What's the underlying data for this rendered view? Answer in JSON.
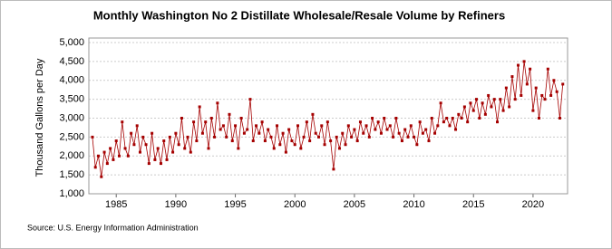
{
  "chart_data": {
    "type": "line",
    "title": "Monthly Washington No 2 Distillate Wholesale/Resale Volume by Refiners",
    "y_label": "Thousand Gallons per Day",
    "source": "Source: U.S. Energy Information Administration",
    "color": "#a50000",
    "grid": true,
    "xlim": [
      1982.7,
      2022.9
    ],
    "xticks": [
      1985,
      1990,
      1995,
      2000,
      2005,
      2010,
      2015,
      2020
    ],
    "ylim": [
      1000,
      5000
    ],
    "yticks": [
      {
        "value": 1000,
        "label": "1,000"
      },
      {
        "value": 1500,
        "label": "1,500"
      },
      {
        "value": 2000,
        "label": "2,000"
      },
      {
        "value": 2500,
        "label": "2,500"
      },
      {
        "value": 3000,
        "label": "3,000"
      },
      {
        "value": 3500,
        "label": "3,500"
      },
      {
        "value": 4000,
        "label": "4,000"
      },
      {
        "value": 4500,
        "label": "4,500"
      },
      {
        "value": 5000,
        "label": "5,000"
      }
    ],
    "x": [
      1983,
      1983.25,
      1983.5,
      1983.75,
      1984,
      1984.25,
      1984.5,
      1984.75,
      1985,
      1985.25,
      1985.5,
      1985.75,
      1986,
      1986.25,
      1986.5,
      1986.75,
      1987,
      1987.25,
      1987.5,
      1987.75,
      1988,
      1988.25,
      1988.5,
      1988.75,
      1989,
      1989.25,
      1989.5,
      1989.75,
      1990,
      1990.25,
      1990.5,
      1990.75,
      1991,
      1991.25,
      1991.5,
      1991.75,
      1992,
      1992.25,
      1992.5,
      1992.75,
      1993,
      1993.25,
      1993.5,
      1993.75,
      1994,
      1994.25,
      1994.5,
      1994.75,
      1995,
      1995.25,
      1995.5,
      1995.75,
      1996,
      1996.25,
      1996.5,
      1996.75,
      1997,
      1997.25,
      1997.5,
      1997.75,
      1998,
      1998.25,
      1998.5,
      1998.75,
      1999,
      1999.25,
      1999.5,
      1999.75,
      2000,
      2000.25,
      2000.5,
      2000.75,
      2001,
      2001.25,
      2001.5,
      2001.75,
      2002,
      2002.25,
      2002.5,
      2002.75,
      2003,
      2003.25,
      2003.5,
      2003.75,
      2004,
      2004.25,
      2004.5,
      2004.75,
      2005,
      2005.25,
      2005.5,
      2005.75,
      2006,
      2006.25,
      2006.5,
      2006.75,
      2007,
      2007.25,
      2007.5,
      2007.75,
      2008,
      2008.25,
      2008.5,
      2008.75,
      2009,
      2009.25,
      2009.5,
      2009.75,
      2010,
      2010.25,
      2010.5,
      2010.75,
      2011,
      2011.25,
      2011.5,
      2011.75,
      2012,
      2012.25,
      2012.5,
      2012.75,
      2013,
      2013.25,
      2013.5,
      2013.75,
      2014,
      2014.25,
      2014.5,
      2014.75,
      2015,
      2015.25,
      2015.5,
      2015.75,
      2016,
      2016.25,
      2016.5,
      2016.75,
      2017,
      2017.25,
      2017.5,
      2017.75,
      2018,
      2018.25,
      2018.5,
      2018.75,
      2019,
      2019.25,
      2019.5,
      2019.75,
      2020,
      2020.25,
      2020.5,
      2020.75,
      2021,
      2021.25,
      2021.5,
      2021.75,
      2022,
      2022.25,
      2022.5
    ],
    "values": [
      2500,
      1700,
      2000,
      1450,
      2100,
      1800,
      2200,
      1900,
      2400,
      2000,
      2900,
      2200,
      2000,
      2600,
      2300,
      2800,
      2100,
      2500,
      2300,
      1800,
      2600,
      1900,
      2200,
      1800,
      2400,
      1900,
      2500,
      2100,
      2600,
      2300,
      3000,
      2200,
      2500,
      2100,
      2900,
      2400,
      3300,
      2600,
      2900,
      2200,
      3000,
      2500,
      3400,
      2700,
      2800,
      2500,
      3100,
      2400,
      2800,
      2200,
      3000,
      2600,
      2700,
      3500,
      2400,
      2800,
      2600,
      2900,
      2400,
      2700,
      2500,
      2200,
      2800,
      2300,
      2600,
      2100,
      2700,
      2400,
      2300,
      2800,
      2200,
      2500,
      2900,
      2400,
      3100,
      2600,
      2500,
      2800,
      2300,
      2900,
      2400,
      1650,
      2500,
      2200,
      2600,
      2300,
      2800,
      2500,
      2700,
      2400,
      2900,
      2600,
      2800,
      2500,
      3000,
      2700,
      2900,
      2600,
      3000,
      2700,
      2800,
      2500,
      3000,
      2600,
      2400,
      2700,
      2500,
      2800,
      2500,
      2300,
      2900,
      2600,
      2700,
      2400,
      3000,
      2600,
      2800,
      3400,
      2900,
      3000,
      2800,
      3000,
      2700,
      3100,
      3000,
      3300,
      2900,
      3400,
      3200,
      3500,
      3000,
      3400,
      3100,
      3600,
      3300,
      3500,
      2900,
      3500,
      3200,
      3800,
      3300,
      4100,
      3500,
      4400,
      3600,
      4500,
      3900,
      4300,
      3200,
      3800,
      3000,
      3600,
      3500,
      4300,
      3600,
      4000,
      3700,
      3000,
      3900
    ]
  }
}
